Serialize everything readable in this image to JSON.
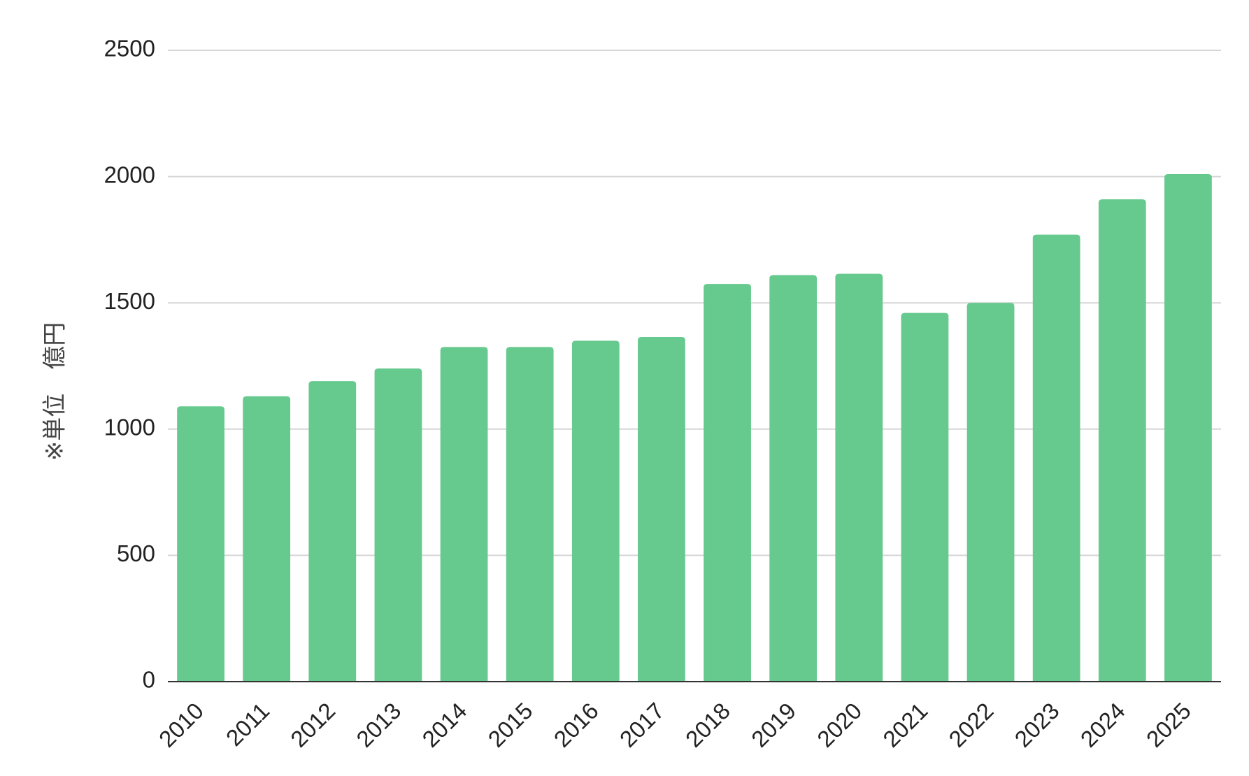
{
  "chart_data": {
    "type": "bar",
    "categories": [
      "2010",
      "2011",
      "2012",
      "2013",
      "2014",
      "2015",
      "2016",
      "2017",
      "2018",
      "2019",
      "2020",
      "2021",
      "2022",
      "2023",
      "2024",
      "2025"
    ],
    "values": [
      1090,
      1130,
      1190,
      1240,
      1325,
      1325,
      1350,
      1365,
      1575,
      1610,
      1615,
      1460,
      1500,
      1770,
      1910,
      2010
    ],
    "title": "",
    "xlabel": "",
    "ylabel": "※単位　億円",
    "ylim": [
      0,
      2500
    ],
    "yticks": [
      "0",
      "500",
      "1000",
      "1500",
      "2000",
      "2500"
    ],
    "grid": true,
    "legend": "none",
    "bar_color": "#66c98e"
  }
}
